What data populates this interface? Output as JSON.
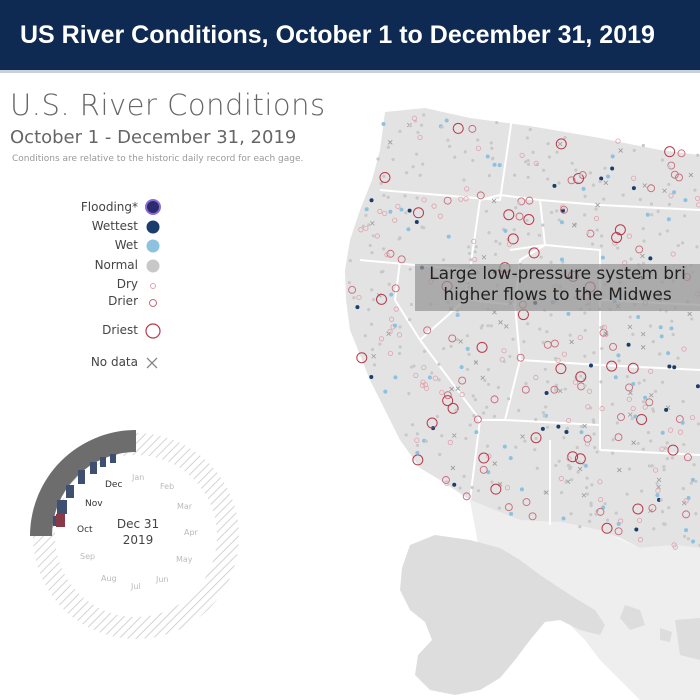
{
  "banner_title": "US River Conditions, October 1 to December 31, 2019",
  "title": "U.S. River Conditions",
  "subtitle": "October 1 - December 31, 2019",
  "note": "Conditions are relative to the historic daily record for each gage.",
  "legend": [
    {
      "label": "Flooding*",
      "symbol": "flood",
      "color": "#2b2c6e"
    },
    {
      "label": "Wettest",
      "symbol": "wettest",
      "color": "#1a3d6b"
    },
    {
      "label": "Wet",
      "symbol": "wet",
      "color": "#8cc2e0"
    },
    {
      "label": "Normal",
      "symbol": "normal",
      "color": "#c8c8c8"
    },
    {
      "label": "Dry",
      "symbol": "dry",
      "color": "#e0a3ad"
    },
    {
      "label": "Drier",
      "symbol": "drier",
      "color": "#c76b7b"
    },
    {
      "label": "Driest",
      "symbol": "driest",
      "color": "#b83a4e"
    },
    {
      "label": "No data",
      "symbol": "nodata",
      "color": "#888888"
    }
  ],
  "callout": {
    "line1": "Large low-pressure system bri",
    "line2": "higher flows to the Midwes"
  },
  "dial": {
    "date_line1": "Dec 31",
    "date_line2": "2019",
    "months": [
      "Jan",
      "Feb",
      "Mar",
      "Apr",
      "May",
      "Jun",
      "Jul",
      "Aug",
      "Sep",
      "Oct",
      "Nov",
      "Dec"
    ],
    "active_months": [
      "Oct",
      "Nov",
      "Dec"
    ]
  },
  "colors": {
    "banner_bg": "#0f2a52",
    "land": "#e3e3e3",
    "state_border": "#ffffff",
    "water": "#ffffff"
  }
}
